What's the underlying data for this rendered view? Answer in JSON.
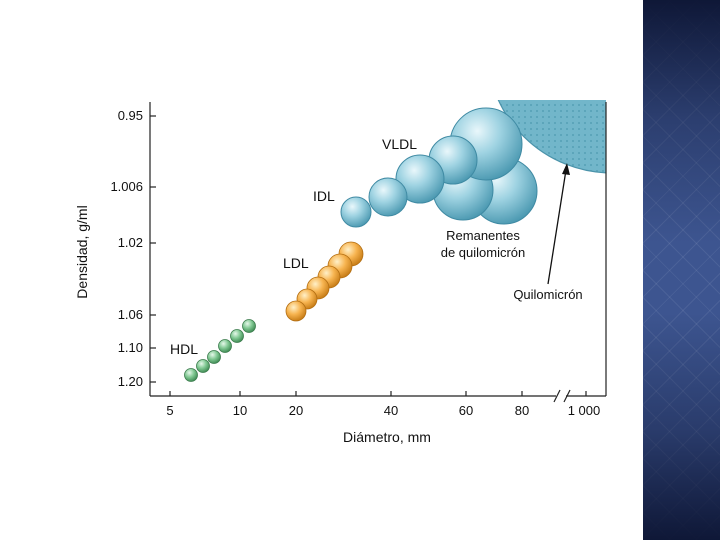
{
  "figure": {
    "y_axis_label": "Densidad, g/ml",
    "x_axis_label": "Diámetro, mm",
    "y_ticks": [
      "0.95",
      "1.006",
      "1.02",
      "1.06",
      "1.10",
      "1.20"
    ],
    "x_ticks": [
      "5",
      "10",
      "20",
      "40",
      "60",
      "80",
      "1 000"
    ],
    "labels": {
      "vldl": "VLDL",
      "idl": "IDL",
      "ldl": "LDL",
      "hdl": "HDL",
      "remnants_line1": "Remanentes",
      "remnants_line2": "de quilomicrón",
      "chylomicron": "Quilomicrón"
    },
    "colors": {
      "hdl": "#6fbf7f",
      "ldl": "#f0a63a",
      "vldl_idl": "#86c7d8",
      "chylomicron": "#6fb4c8"
    }
  }
}
